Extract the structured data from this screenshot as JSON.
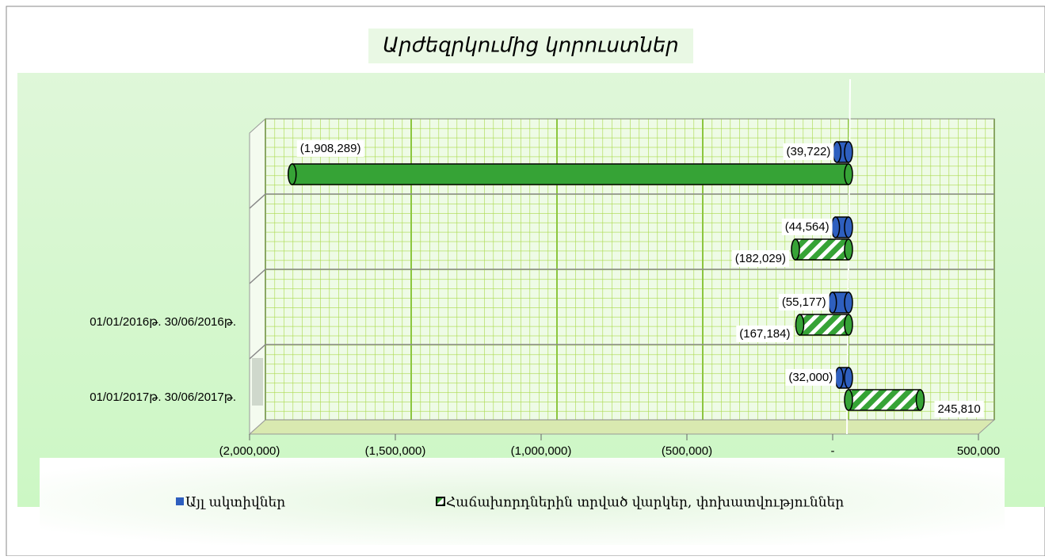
{
  "chart_data": {
    "type": "bar",
    "orientation": "horizontal",
    "title": "Արժեզրկումից կորուստներ",
    "categories": [
      "01/01/2017թ. 30/06/2017թ.",
      "01/01/2016թ. 30/06/2016թ.",
      null,
      null
    ],
    "series": [
      {
        "name": "Այլ ակտիվներ",
        "color": "#2e5fbf",
        "values": [
          -32000,
          -55177,
          -44564,
          -39722
        ],
        "value_labels": [
          "(32,000)",
          "(55,177)",
          "(44,564)",
          "(39,722)"
        ]
      },
      {
        "name": "Հաճախորդներին տրված վարկեր, փոխատվություններ",
        "color": "#36a336",
        "values": [
          245810,
          -167184,
          -182029,
          -1908289
        ],
        "value_labels": [
          "245,810",
          "(167,184)",
          "(182,029)",
          "(1,908,289)"
        ]
      }
    ],
    "xlim": [
      -2000000,
      500000
    ],
    "xticks": [
      {
        "value": -2000000,
        "label": "(2,000,000)"
      },
      {
        "value": -1500000,
        "label": "(1,500,000)"
      },
      {
        "value": -1000000,
        "label": "(1,000,000)"
      },
      {
        "value": -500000,
        "label": "(500,000)"
      },
      {
        "value": 0,
        "label": "-"
      },
      {
        "value": 500000,
        "label": "500,000"
      }
    ],
    "grid": true,
    "legend": "bottom"
  }
}
